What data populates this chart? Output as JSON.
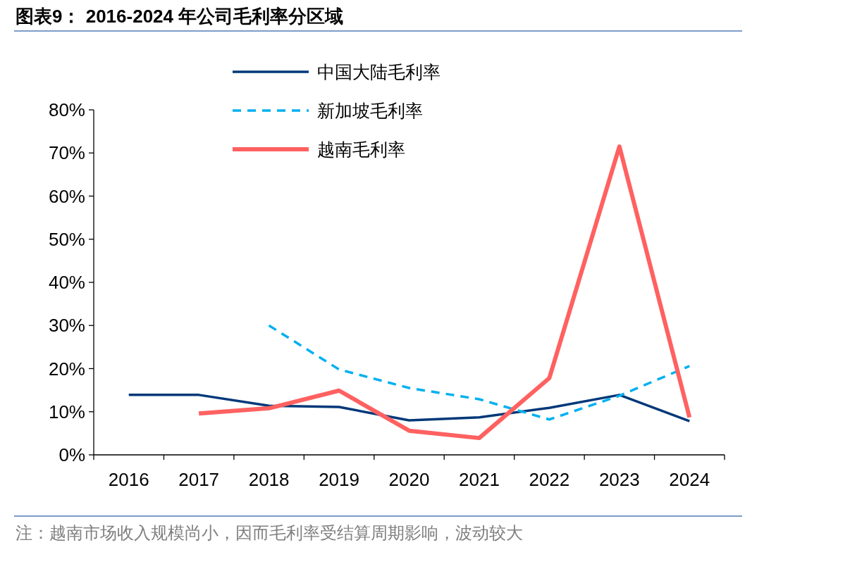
{
  "chart_data": {
    "type": "line",
    "title": "图表9： 2016-2024 年公司毛利率分区域",
    "categories": [
      "2016",
      "2017",
      "2018",
      "2019",
      "2020",
      "2021",
      "2022",
      "2023",
      "2024"
    ],
    "series": [
      {
        "name": "中国大陆毛利率",
        "color": "#003879",
        "line_style": "solid",
        "values": [
          13.9,
          13.9,
          11.4,
          11.1,
          8.0,
          8.7,
          10.9,
          13.9,
          7.8
        ]
      },
      {
        "name": "新加坡毛利率",
        "color": "#00b0f0",
        "line_style": "dashed",
        "values": [
          null,
          null,
          30.0,
          19.8,
          15.5,
          12.9,
          8.2,
          13.7,
          20.6
        ]
      },
      {
        "name": "越南毛利率",
        "color": "#ff6161",
        "line_style": "solid",
        "values": [
          null,
          9.6,
          10.8,
          14.9,
          5.6,
          3.9,
          17.8,
          71.5,
          8.7
        ]
      }
    ],
    "ylim": [
      0,
      80
    ],
    "yticks": [
      {
        "value": 0,
        "label": "0%"
      },
      {
        "value": 10,
        "label": "10%"
      },
      {
        "value": 20,
        "label": "20%"
      },
      {
        "value": 30,
        "label": "30%"
      },
      {
        "value": 40,
        "label": "40%"
      },
      {
        "value": 50,
        "label": "50%"
      },
      {
        "value": 60,
        "label": "60%"
      },
      {
        "value": 70,
        "label": "70%"
      },
      {
        "value": 80,
        "label": "80%"
      }
    ],
    "legend": "top left",
    "grid": false,
    "annotations": [
      "注：越南市场收入规模尚小，因而毛利率受结算周期影响，波动较大"
    ]
  }
}
